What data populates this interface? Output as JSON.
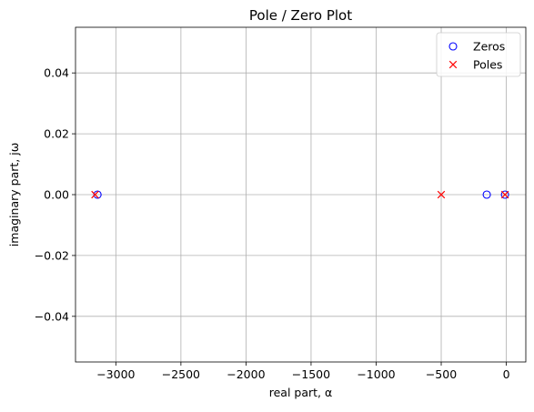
{
  "chart_data": {
    "type": "scatter",
    "title": "Pole / Zero Plot",
    "xlabel": "real part, α",
    "ylabel": "imaginary part, jω",
    "xlim": [
      -3310,
      150
    ],
    "ylim": [
      -0.055,
      0.055
    ],
    "xticks": [
      -3000,
      -2500,
      -2000,
      -1500,
      -1000,
      -500,
      0
    ],
    "xtick_labels": [
      "−3000",
      "−2500",
      "−2000",
      "−1500",
      "−1000",
      "−500",
      "0"
    ],
    "yticks": [
      -0.04,
      -0.02,
      0.0,
      0.02,
      0.04
    ],
    "ytick_labels": [
      "−0.04",
      "−0.02",
      "0.00",
      "0.02",
      "0.04"
    ],
    "grid": true,
    "legend_position": "top-right",
    "series": [
      {
        "name": "Zeros",
        "marker": "circle",
        "color": "#0000ff",
        "points": [
          {
            "x": -3141,
            "y": 0
          },
          {
            "x": -150,
            "y": 0
          },
          {
            "x": -10,
            "y": 0
          }
        ]
      },
      {
        "name": "Poles",
        "marker": "x",
        "color": "#ff0000",
        "points": [
          {
            "x": -3160,
            "y": 0
          },
          {
            "x": -500,
            "y": 0
          },
          {
            "x": -10,
            "y": 0
          }
        ]
      }
    ]
  }
}
